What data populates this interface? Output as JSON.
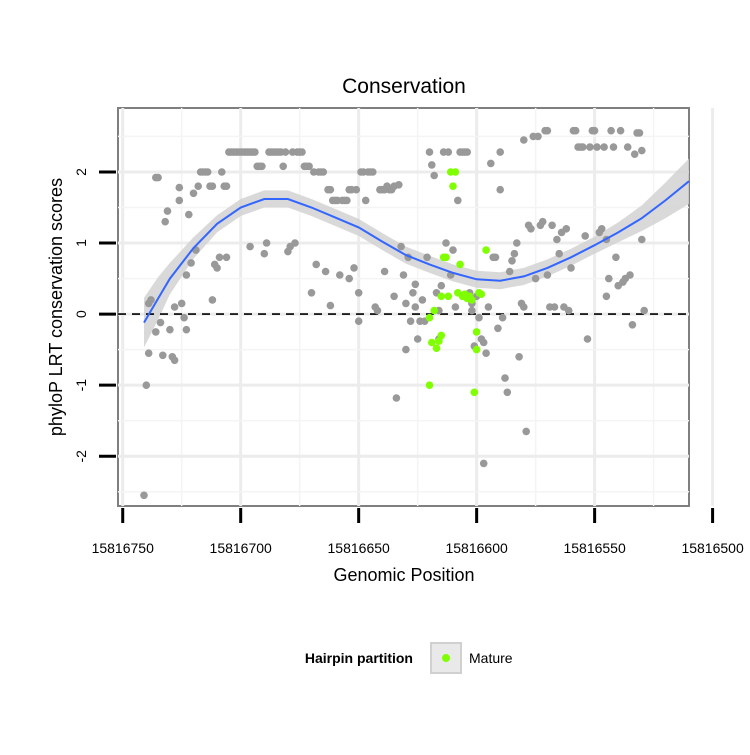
{
  "chart_data": {
    "type": "scatter",
    "title": "Conservation",
    "xlabel": "Genomic Position",
    "ylabel": "phyloP LRT conservation scores",
    "x_reversed": true,
    "xlim": [
      15816510,
      15816752
    ],
    "ylim": [
      -2.7,
      2.9
    ],
    "x_ticks": [
      15816750,
      15816700,
      15816650,
      15816600,
      15816550,
      15816500
    ],
    "y_ticks": [
      -2,
      -1,
      0,
      1,
      2
    ],
    "reference_line": {
      "y": 0,
      "style": "dashed"
    },
    "grid": true,
    "legend": {
      "title": "Hairpin partition",
      "position": "bottom",
      "entries": [
        "Mature"
      ]
    },
    "colors": {
      "background": "#e5e5e5",
      "other": "#999999",
      "mature": "#7fff00",
      "smooth": "#3366ff",
      "band": "#d2d2d2"
    },
    "series": [
      {
        "name": "",
        "color": "#999999",
        "points": [
          [
            15816741,
            -2.55
          ],
          [
            15816740,
            -1.0
          ],
          [
            15816739,
            -0.55
          ],
          [
            15816739,
            0.15
          ],
          [
            15816738,
            0.2
          ],
          [
            15816736,
            1.92
          ],
          [
            15816735,
            1.92
          ],
          [
            15816736,
            -0.25
          ],
          [
            15816734,
            -0.12
          ],
          [
            15816733,
            -0.58
          ],
          [
            15816732,
            1.3
          ],
          [
            15816731,
            1.45
          ],
          [
            15816730,
            -0.22
          ],
          [
            15816729,
            -0.6
          ],
          [
            15816728,
            -0.65
          ],
          [
            15816728,
            0.1
          ],
          [
            15816726,
            1.6
          ],
          [
            15816726,
            1.78
          ],
          [
            15816725,
            0.15
          ],
          [
            15816724,
            -0.05
          ],
          [
            15816723,
            -0.22
          ],
          [
            15816723,
            0.55
          ],
          [
            15816722,
            1.4
          ],
          [
            15816721,
            0.72
          ],
          [
            15816720,
            1.7
          ],
          [
            15816719,
            0.9
          ],
          [
            15816718,
            1.8
          ],
          [
            15816717,
            2.0
          ],
          [
            15816716,
            2.0
          ],
          [
            15816715,
            2.0
          ],
          [
            15816714,
            2.0
          ],
          [
            15816713,
            1.8
          ],
          [
            15816712,
            1.8
          ],
          [
            15816712,
            0.2
          ],
          [
            15816711,
            0.7
          ],
          [
            15816710,
            0.65
          ],
          [
            15816709,
            0.8
          ],
          [
            15816708,
            2.0
          ],
          [
            15816707,
            1.8
          ],
          [
            15816706,
            1.8
          ],
          [
            15816706,
            0.8
          ],
          [
            15816705,
            2.28
          ],
          [
            15816704,
            2.28
          ],
          [
            15816703,
            2.28
          ],
          [
            15816702,
            2.28
          ],
          [
            15816701,
            2.28
          ],
          [
            15816700,
            2.28
          ],
          [
            15816699,
            2.28
          ],
          [
            15816698,
            2.28
          ],
          [
            15816697,
            2.28
          ],
          [
            15816696,
            2.28
          ],
          [
            15816696,
            0.95
          ],
          [
            15816695,
            2.28
          ],
          [
            15816694,
            2.28
          ],
          [
            15816693,
            2.08
          ],
          [
            15816692,
            2.08
          ],
          [
            15816691,
            2.08
          ],
          [
            15816690,
            0.85
          ],
          [
            15816689,
            1.0
          ],
          [
            15816688,
            2.28
          ],
          [
            15816687,
            2.28
          ],
          [
            15816686,
            2.28
          ],
          [
            15816685,
            2.28
          ],
          [
            15816684,
            2.28
          ],
          [
            15816683,
            2.28
          ],
          [
            15816682,
            2.08
          ],
          [
            15816681,
            2.28
          ],
          [
            15816680,
            0.88
          ],
          [
            15816679,
            0.95
          ],
          [
            15816678,
            2.28
          ],
          [
            15816677,
            1.0
          ],
          [
            15816676,
            2.28
          ],
          [
            15816675,
            2.28
          ],
          [
            15816674,
            2.28
          ],
          [
            15816673,
            2.08
          ],
          [
            15816672,
            2.08
          ],
          [
            15816671,
            2.08
          ],
          [
            15816670,
            0.3
          ],
          [
            15816669,
            2.0
          ],
          [
            15816668,
            0.7
          ],
          [
            15816667,
            2.0
          ],
          [
            15816666,
            2.0
          ],
          [
            15816665,
            2.0
          ],
          [
            15816664,
            0.6
          ],
          [
            15816663,
            1.75
          ],
          [
            15816662,
            1.75
          ],
          [
            15816662,
            0.12
          ],
          [
            15816661,
            1.6
          ],
          [
            15816660,
            1.6
          ],
          [
            15816659,
            1.6
          ],
          [
            15816658,
            0.55
          ],
          [
            15816657,
            1.6
          ],
          [
            15816656,
            1.6
          ],
          [
            15816655,
            1.6
          ],
          [
            15816654,
            1.75
          ],
          [
            15816654,
            0.5
          ],
          [
            15816653,
            1.75
          ],
          [
            15816652,
            0.65
          ],
          [
            15816651,
            1.75
          ],
          [
            15816650,
            -0.1
          ],
          [
            15816650,
            0.3
          ],
          [
            15816649,
            2.0
          ],
          [
            15816648,
            2.0
          ],
          [
            15816647,
            1.6
          ],
          [
            15816646,
            2.0
          ],
          [
            15816645,
            2.0
          ],
          [
            15816644,
            2.0
          ],
          [
            15816643,
            0.1
          ],
          [
            15816642,
            0.05
          ],
          [
            15816641,
            1.75
          ],
          [
            15816640,
            1.75
          ],
          [
            15816639,
            1.75
          ],
          [
            15816639,
            0.6
          ],
          [
            15816638,
            1.8
          ],
          [
            15816637,
            1.75
          ],
          [
            15816636,
            1.75
          ],
          [
            15816635,
            0.25
          ],
          [
            15816635,
            1.8
          ],
          [
            15816634,
            -1.18
          ],
          [
            15816633,
            1.82
          ],
          [
            15816632,
            0.95
          ],
          [
            15816631,
            0.55
          ],
          [
            15816630,
            -0.5
          ],
          [
            15816630,
            0.15
          ],
          [
            15816629,
            0.8
          ],
          [
            15816628,
            -0.1
          ],
          [
            15816627,
            0.3
          ],
          [
            15816626,
            0.1
          ],
          [
            15816626,
            0.42
          ],
          [
            15816625,
            -0.35
          ],
          [
            15816624,
            -0.1
          ],
          [
            15816623,
            0.2
          ],
          [
            15816622,
            -0.1
          ],
          [
            15816621,
            0.8
          ],
          [
            15816620,
            2.28
          ],
          [
            15816619,
            2.1
          ],
          [
            15816618,
            1.95
          ],
          [
            15816617,
            0.3
          ],
          [
            15816616,
            0.05
          ],
          [
            15816616,
            -0.35
          ],
          [
            15816615,
            0.4
          ],
          [
            15816614,
            2.28
          ],
          [
            15816613,
            1.0
          ],
          [
            15816612,
            2.28
          ],
          [
            15816611,
            0.55
          ],
          [
            15816610,
            0.9
          ],
          [
            15816609,
            0.1
          ],
          [
            15816608,
            1.6
          ],
          [
            15816607,
            2.28
          ],
          [
            15816606,
            2.28
          ],
          [
            15816605,
            2.28
          ],
          [
            15816604,
            2.28
          ],
          [
            15816603,
            0.3
          ],
          [
            15816602,
            0.05
          ],
          [
            15816602,
            0.15
          ],
          [
            15816601,
            -0.45
          ],
          [
            15816600,
            0.25
          ],
          [
            15816599,
            -0.05
          ],
          [
            15816598,
            -0.35
          ],
          [
            15816597,
            -0.4
          ],
          [
            15816597,
            -2.1
          ],
          [
            15816596,
            -0.55
          ],
          [
            15816595,
            0.1
          ],
          [
            15816594,
            2.12
          ],
          [
            15816593,
            0.8
          ],
          [
            15816592,
            0.8
          ],
          [
            15816591,
            -0.2
          ],
          [
            15816590,
            1.75
          ],
          [
            15816590,
            2.28
          ],
          [
            15816589,
            -0.05
          ],
          [
            15816588,
            -0.9
          ],
          [
            15816587,
            -1.1
          ],
          [
            15816586,
            0.6
          ],
          [
            15816585,
            0.75
          ],
          [
            15816584,
            0.85
          ],
          [
            15816583,
            1.0
          ],
          [
            15816582,
            -0.6
          ],
          [
            15816581,
            0.15
          ],
          [
            15816580,
            0.1
          ],
          [
            15816580,
            2.45
          ],
          [
            15816579,
            -1.65
          ],
          [
            15816578,
            1.25
          ],
          [
            15816577,
            1.2
          ],
          [
            15816576,
            2.5
          ],
          [
            15816575,
            0.5
          ],
          [
            15816574,
            2.5
          ],
          [
            15816573,
            1.25
          ],
          [
            15816572,
            1.3
          ],
          [
            15816571,
            2.58
          ],
          [
            15816570,
            0.55
          ],
          [
            15816570,
            2.58
          ],
          [
            15816569,
            0.1
          ],
          [
            15816568,
            1.25
          ],
          [
            15816567,
            0.1
          ],
          [
            15816566,
            1.05
          ],
          [
            15816565,
            0.85
          ],
          [
            15816564,
            1.15
          ],
          [
            15816563,
            0.1
          ],
          [
            15816562,
            1.2
          ],
          [
            15816561,
            0.05
          ],
          [
            15816560,
            0.65
          ],
          [
            15816559,
            2.58
          ],
          [
            15816558,
            2.58
          ],
          [
            15816557,
            2.35
          ],
          [
            15816556,
            2.35
          ],
          [
            15816555,
            2.35
          ],
          [
            15816554,
            1.1
          ],
          [
            15816553,
            -0.35
          ],
          [
            15816552,
            2.35
          ],
          [
            15816551,
            2.58
          ],
          [
            15816550,
            2.58
          ],
          [
            15816549,
            2.35
          ],
          [
            15816548,
            1.15
          ],
          [
            15816547,
            1.2
          ],
          [
            15816546,
            2.35
          ],
          [
            15816545,
            1.05
          ],
          [
            15816545,
            0.25
          ],
          [
            15816544,
            0.5
          ],
          [
            15816543,
            2.58
          ],
          [
            15816542,
            2.35
          ],
          [
            15816541,
            0.8
          ],
          [
            15816540,
            0.4
          ],
          [
            15816539,
            2.58
          ],
          [
            15816538,
            0.45
          ],
          [
            15816537,
            0.5
          ],
          [
            15816536,
            2.35
          ],
          [
            15816535,
            0.55
          ],
          [
            15816534,
            -0.15
          ],
          [
            15816533,
            2.25
          ],
          [
            15816532,
            2.55
          ],
          [
            15816531,
            2.55
          ],
          [
            15816530,
            2.3
          ],
          [
            15816529,
            0.05
          ],
          [
            15816530,
            1.05
          ]
        ]
      },
      {
        "name": "Mature",
        "color": "#7fff00",
        "points": [
          [
            15816611,
            2.0
          ],
          [
            15816610,
            1.8
          ],
          [
            15816609,
            2.0
          ],
          [
            15816608,
            0.3
          ],
          [
            15816607,
            0.7
          ],
          [
            15816606,
            0.25
          ],
          [
            15816605,
            0.28
          ],
          [
            15816604,
            0.22
          ],
          [
            15816603,
            0.25
          ],
          [
            15816602,
            0.2
          ],
          [
            15816601,
            -1.1
          ],
          [
            15816600,
            -0.5
          ],
          [
            15816600,
            -0.25
          ],
          [
            15816599,
            0.3
          ],
          [
            15816598,
            0.28
          ],
          [
            15816596,
            0.9
          ],
          [
            15816614,
            0.8
          ],
          [
            15816613,
            0.8
          ],
          [
            15816612,
            0.25
          ],
          [
            15816615,
            -0.3
          ],
          [
            15816616,
            -0.38
          ],
          [
            15816617,
            -0.48
          ],
          [
            15816618,
            0.05
          ],
          [
            15816619,
            -0.4
          ],
          [
            15816620,
            -0.05
          ],
          [
            15816620,
            -1.0
          ],
          [
            15816615,
            0.25
          ]
        ]
      }
    ],
    "smooth_curve": {
      "x": [
        15816741,
        15816735,
        15816730,
        15816720,
        15816710,
        15816700,
        15816690,
        15816680,
        15816670,
        15816660,
        15816650,
        15816640,
        15816630,
        15816620,
        15816610,
        15816600,
        15816590,
        15816580,
        15816570,
        15816560,
        15816550,
        15816540,
        15816530,
        15816520,
        15816510
      ],
      "y": [
        -0.12,
        0.22,
        0.5,
        0.93,
        1.27,
        1.5,
        1.62,
        1.62,
        1.5,
        1.36,
        1.22,
        1.02,
        0.83,
        0.7,
        0.58,
        0.49,
        0.47,
        0.53,
        0.65,
        0.8,
        0.97,
        1.15,
        1.35,
        1.6,
        1.87
      ],
      "band": [
        0.35,
        0.3,
        0.22,
        0.15,
        0.12,
        0.12,
        0.12,
        0.12,
        0.12,
        0.12,
        0.12,
        0.12,
        0.12,
        0.12,
        0.12,
        0.12,
        0.12,
        0.12,
        0.12,
        0.12,
        0.12,
        0.14,
        0.18,
        0.25,
        0.32
      ]
    }
  }
}
